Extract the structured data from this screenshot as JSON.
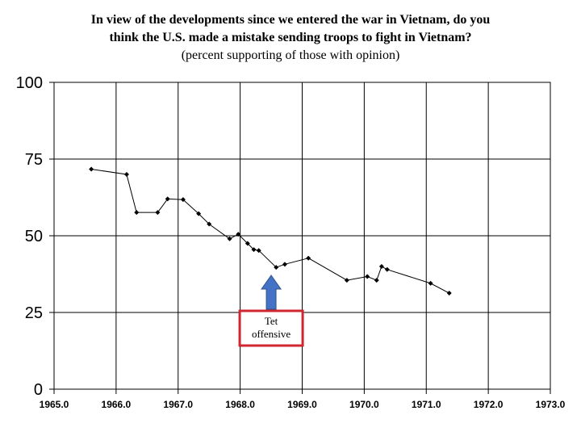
{
  "title_lines": [
    "In view of the developments since we entered the war in Vietnam, do you",
    "think the U.S. made a mistake sending troops to fight in Vietnam?",
    "(percent supporting of those with opinion)"
  ],
  "chart_data": {
    "type": "line",
    "title": "In view of the developments since we entered the war in Vietnam, do you think the U.S. made a mistake sending troops to fight in Vietnam?",
    "subtitle": "(percent supporting of those with opinion)",
    "xlabel": "",
    "ylabel": "",
    "xlim": [
      1965.0,
      1973.0
    ],
    "ylim": [
      0,
      100
    ],
    "x_ticks": [
      "1965.0",
      "1966.0",
      "1967.0",
      "1968.0",
      "1969.0",
      "1970.0",
      "1971.0",
      "1972.0",
      "1973.0"
    ],
    "y_ticks": [
      "0",
      "25",
      "50",
      "75",
      "100"
    ],
    "grid": true,
    "series": [
      {
        "x": [
          1965.6,
          1966.17,
          1966.33,
          1966.67,
          1966.83,
          1967.08,
          1967.33,
          1967.5,
          1967.83,
          1967.97,
          1968.12,
          1968.22,
          1968.3,
          1968.58,
          1968.72,
          1969.1,
          1969.72,
          1970.05,
          1970.2,
          1970.28,
          1970.37,
          1971.07,
          1971.37
        ],
        "y": [
          71.7,
          70.0,
          57.6,
          57.6,
          62.0,
          61.8,
          57.2,
          53.8,
          49.0,
          50.5,
          47.5,
          45.5,
          45.2,
          39.7,
          40.7,
          42.7,
          35.5,
          36.7,
          35.5,
          40.0,
          39.0,
          34.5,
          31.3
        ],
        "color": "#000000"
      }
    ],
    "annotation": {
      "text_lines": [
        "Tet",
        "offensive"
      ],
      "x": 1968.5,
      "arrow_color": "#4472c4",
      "box_color": "#d0262f"
    }
  }
}
